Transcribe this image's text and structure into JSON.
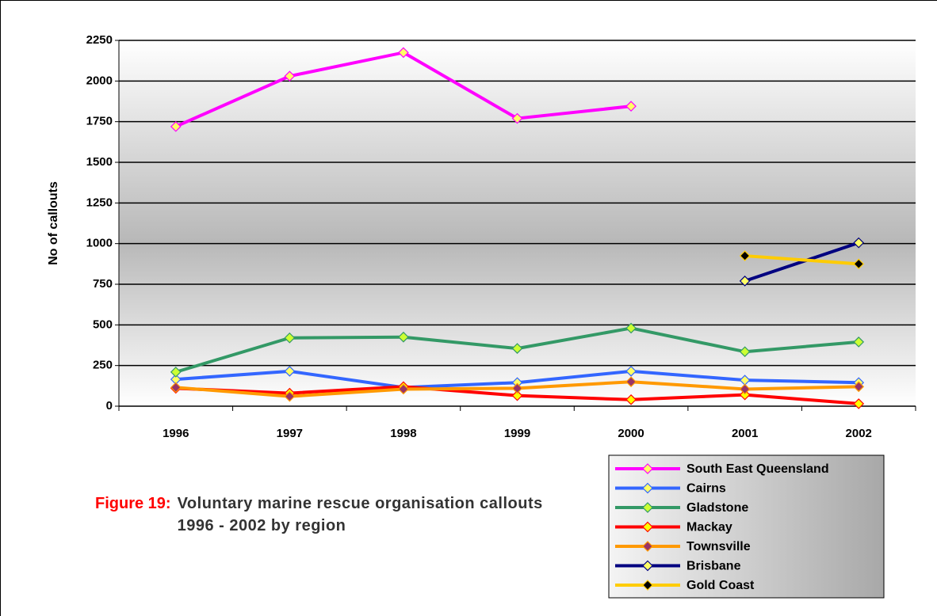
{
  "chart_data": {
    "type": "line",
    "figure_label": "Figure 19:",
    "title": "Voluntary marine rescue organisation callouts 1996 - 2002 by region",
    "y_label": "No of callouts",
    "categories": [
      "1996",
      "1997",
      "1998",
      "1999",
      "2000",
      "2001",
      "2002"
    ],
    "series": [
      {
        "name": "South East Queensland",
        "color": "#ff00ff",
        "marker_color": "#ffff66",
        "values": [
          1720,
          2030,
          2175,
          1770,
          1845,
          null,
          null
        ]
      },
      {
        "name": "Cairns",
        "color": "#3366ff",
        "marker_color": "#ffff66",
        "values": [
          165,
          215,
          115,
          145,
          215,
          160,
          145
        ]
      },
      {
        "name": "Gladstone",
        "color": "#339966",
        "marker_color": "#ccff33",
        "values": [
          210,
          420,
          425,
          355,
          480,
          335,
          395
        ]
      },
      {
        "name": "Mackay",
        "color": "#ff0000",
        "marker_color": "#ffff00",
        "values": [
          110,
          80,
          120,
          65,
          40,
          70,
          15
        ]
      },
      {
        "name": "Townsville",
        "color": "#ff9900",
        "marker_color": "#993366",
        "values": [
          115,
          60,
          105,
          110,
          150,
          105,
          120
        ]
      },
      {
        "name": "Brisbane",
        "color": "#000080",
        "marker_color": "#ffff66",
        "values": [
          null,
          null,
          null,
          null,
          null,
          770,
          1005
        ]
      },
      {
        "name": "Gold Coast",
        "color": "#ffcc00",
        "marker_color": "#000000",
        "values": [
          null,
          null,
          null,
          null,
          null,
          925,
          875
        ]
      }
    ],
    "ylim": [
      0,
      2250
    ],
    "yticks": [
      0,
      250,
      500,
      750,
      1000,
      1250,
      1500,
      1750,
      2000,
      2250
    ],
    "grid": true
  }
}
